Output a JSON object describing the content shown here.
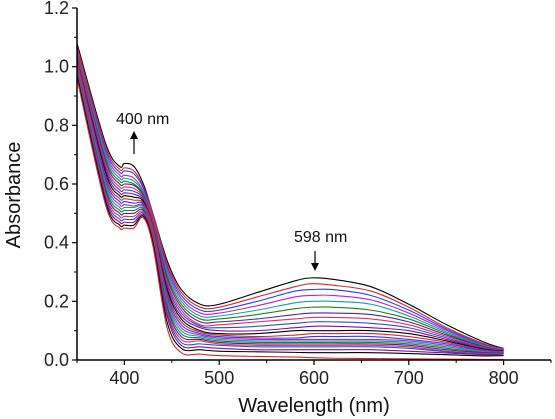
{
  "chart_data": {
    "type": "line",
    "title": "",
    "xlabel": "Wavelength (nm)",
    "ylabel": "Absorbance",
    "xlim": [
      350,
      850
    ],
    "ylim": [
      0.0,
      1.2
    ],
    "x_ticks": [
      400,
      500,
      600,
      700,
      800
    ],
    "y_ticks": [
      0.0,
      0.2,
      0.4,
      0.6,
      0.8,
      1.0,
      1.2
    ],
    "x_tick_labels": [
      "400",
      "500",
      "600",
      "700",
      "800"
    ],
    "y_tick_labels": [
      "0.0",
      "0.2",
      "0.4",
      "0.6",
      "0.8",
      "1.0",
      "1.2"
    ],
    "grid": false,
    "legend": "none",
    "annotations": [
      {
        "text": "400 nm",
        "x": 400,
        "y": 0.7,
        "arrow": "up"
      },
      {
        "text": "598 nm",
        "x": 598,
        "y": 0.3,
        "arrow": "down"
      }
    ],
    "series_colors": [
      "#000000",
      "#d62728",
      "#1f3fff",
      "#c020c0",
      "#10a0a0",
      "#208020",
      "#5020a0",
      "#e03060",
      "#3050c0",
      "#8010a0"
    ],
    "series": [
      {
        "x": [
          350,
          380,
          395,
          400,
          410,
          420,
          430,
          445,
          460,
          480,
          500,
          540,
          580,
          598,
          620,
          660,
          700,
          740,
          780,
          800
        ],
        "values": [
          1.08,
          0.74,
          0.66,
          0.67,
          0.66,
          0.6,
          0.5,
          0.34,
          0.24,
          0.19,
          0.19,
          0.23,
          0.27,
          0.28,
          0.275,
          0.25,
          0.19,
          0.12,
          0.06,
          0.04
        ]
      },
      {
        "x": [
          350,
          380,
          395,
          400,
          410,
          420,
          430,
          445,
          460,
          480,
          500,
          540,
          580,
          598,
          620,
          660,
          700,
          740,
          780,
          800
        ],
        "values": [
          1.07,
          0.73,
          0.65,
          0.655,
          0.645,
          0.59,
          0.5,
          0.33,
          0.23,
          0.18,
          0.18,
          0.215,
          0.25,
          0.26,
          0.255,
          0.235,
          0.18,
          0.11,
          0.055,
          0.04
        ]
      },
      {
        "x": [
          350,
          380,
          395,
          400,
          410,
          420,
          430,
          445,
          460,
          480,
          500,
          540,
          580,
          598,
          620,
          660,
          700,
          740,
          780,
          800
        ],
        "values": [
          1.06,
          0.72,
          0.64,
          0.645,
          0.635,
          0.585,
          0.49,
          0.32,
          0.22,
          0.17,
          0.17,
          0.2,
          0.235,
          0.24,
          0.24,
          0.22,
          0.17,
          0.105,
          0.052,
          0.038
        ]
      },
      {
        "x": [
          350,
          380,
          395,
          400,
          410,
          420,
          430,
          445,
          460,
          480,
          500,
          540,
          580,
          598,
          620,
          660,
          700,
          740,
          780,
          800
        ],
        "values": [
          1.06,
          0.71,
          0.63,
          0.63,
          0.62,
          0.575,
          0.49,
          0.31,
          0.21,
          0.16,
          0.16,
          0.185,
          0.215,
          0.22,
          0.22,
          0.205,
          0.16,
          0.1,
          0.05,
          0.037
        ]
      },
      {
        "x": [
          350,
          380,
          395,
          400,
          410,
          420,
          430,
          445,
          460,
          480,
          500,
          540,
          580,
          598,
          620,
          660,
          700,
          740,
          780,
          800
        ],
        "values": [
          1.05,
          0.7,
          0.62,
          0.62,
          0.61,
          0.57,
          0.48,
          0.3,
          0.2,
          0.15,
          0.15,
          0.17,
          0.195,
          0.2,
          0.2,
          0.19,
          0.15,
          0.095,
          0.048,
          0.036
        ]
      },
      {
        "x": [
          350,
          380,
          395,
          400,
          410,
          420,
          430,
          445,
          460,
          480,
          500,
          540,
          580,
          598,
          620,
          660,
          700,
          740,
          780,
          800
        ],
        "values": [
          1.05,
          0.69,
          0.61,
          0.61,
          0.6,
          0.565,
          0.48,
          0.29,
          0.19,
          0.14,
          0.14,
          0.155,
          0.175,
          0.18,
          0.18,
          0.17,
          0.14,
          0.09,
          0.046,
          0.035
        ]
      },
      {
        "x": [
          350,
          380,
          395,
          400,
          410,
          420,
          430,
          445,
          460,
          480,
          500,
          540,
          580,
          598,
          620,
          660,
          700,
          740,
          780,
          800
        ],
        "values": [
          1.04,
          0.68,
          0.6,
          0.6,
          0.595,
          0.56,
          0.47,
          0.28,
          0.18,
          0.13,
          0.13,
          0.14,
          0.155,
          0.16,
          0.16,
          0.155,
          0.13,
          0.085,
          0.044,
          0.034
        ]
      },
      {
        "x": [
          350,
          380,
          395,
          400,
          410,
          420,
          430,
          445,
          460,
          480,
          500,
          540,
          580,
          598,
          620,
          660,
          700,
          740,
          780,
          800
        ],
        "values": [
          1.04,
          0.67,
          0.59,
          0.59,
          0.585,
          0.555,
          0.47,
          0.27,
          0.17,
          0.12,
          0.12,
          0.13,
          0.14,
          0.145,
          0.145,
          0.14,
          0.12,
          0.08,
          0.042,
          0.033
        ]
      },
      {
        "x": [
          350,
          380,
          395,
          400,
          410,
          420,
          430,
          445,
          460,
          480,
          500,
          540,
          580,
          598,
          620,
          660,
          700,
          740,
          780,
          800
        ],
        "values": [
          1.03,
          0.66,
          0.58,
          0.58,
          0.575,
          0.55,
          0.46,
          0.26,
          0.16,
          0.115,
          0.11,
          0.115,
          0.125,
          0.13,
          0.13,
          0.125,
          0.11,
          0.075,
          0.04,
          0.032
        ]
      },
      {
        "x": [
          350,
          380,
          395,
          400,
          410,
          420,
          430,
          445,
          460,
          480,
          500,
          540,
          580,
          598,
          620,
          660,
          700,
          740,
          780,
          800
        ],
        "values": [
          1.03,
          0.65,
          0.57,
          0.57,
          0.565,
          0.545,
          0.46,
          0.25,
          0.15,
          0.11,
          0.1,
          0.1,
          0.11,
          0.115,
          0.115,
          0.11,
          0.1,
          0.07,
          0.038,
          0.031
        ]
      },
      {
        "x": [
          350,
          380,
          395,
          400,
          410,
          420,
          430,
          445,
          460,
          480,
          500,
          540,
          580,
          598,
          620,
          660,
          700,
          740,
          780,
          800
        ],
        "values": [
          1.02,
          0.64,
          0.56,
          0.56,
          0.555,
          0.54,
          0.45,
          0.24,
          0.14,
          0.1,
          0.09,
          0.09,
          0.1,
          0.1,
          0.1,
          0.1,
          0.09,
          0.065,
          0.036,
          0.03
        ]
      },
      {
        "x": [
          350,
          380,
          395,
          400,
          410,
          420,
          430,
          445,
          460,
          480,
          500,
          540,
          580,
          598,
          620,
          660,
          700,
          740,
          780,
          800
        ],
        "values": [
          1.02,
          0.63,
          0.55,
          0.55,
          0.545,
          0.535,
          0.45,
          0.23,
          0.13,
          0.095,
          0.085,
          0.08,
          0.085,
          0.09,
          0.09,
          0.09,
          0.08,
          0.06,
          0.034,
          0.029
        ]
      },
      {
        "x": [
          350,
          380,
          395,
          400,
          410,
          420,
          430,
          445,
          460,
          480,
          500,
          540,
          580,
          598,
          620,
          660,
          700,
          740,
          780,
          800
        ],
        "values": [
          1.01,
          0.62,
          0.54,
          0.54,
          0.535,
          0.53,
          0.44,
          0.22,
          0.12,
          0.09,
          0.08,
          0.075,
          0.075,
          0.08,
          0.08,
          0.08,
          0.07,
          0.055,
          0.032,
          0.028
        ]
      },
      {
        "x": [
          350,
          380,
          395,
          400,
          410,
          420,
          430,
          445,
          460,
          480,
          500,
          540,
          580,
          598,
          620,
          660,
          700,
          740,
          780,
          800
        ],
        "values": [
          1.01,
          0.61,
          0.53,
          0.53,
          0.525,
          0.525,
          0.44,
          0.21,
          0.11,
          0.085,
          0.075,
          0.07,
          0.07,
          0.07,
          0.07,
          0.07,
          0.065,
          0.05,
          0.03,
          0.027
        ]
      },
      {
        "x": [
          350,
          380,
          395,
          400,
          410,
          420,
          430,
          445,
          460,
          480,
          500,
          540,
          580,
          598,
          620,
          660,
          700,
          740,
          780,
          800
        ],
        "values": [
          1.0,
          0.6,
          0.52,
          0.52,
          0.52,
          0.52,
          0.43,
          0.2,
          0.1,
          0.08,
          0.07,
          0.065,
          0.065,
          0.065,
          0.065,
          0.065,
          0.06,
          0.045,
          0.028,
          0.026
        ]
      },
      {
        "x": [
          350,
          380,
          395,
          400,
          410,
          420,
          430,
          445,
          460,
          480,
          500,
          540,
          580,
          598,
          620,
          660,
          700,
          740,
          780,
          800
        ],
        "values": [
          1.0,
          0.59,
          0.51,
          0.51,
          0.51,
          0.515,
          0.43,
          0.19,
          0.09,
          0.075,
          0.065,
          0.06,
          0.06,
          0.06,
          0.06,
          0.06,
          0.055,
          0.04,
          0.026,
          0.025
        ]
      },
      {
        "x": [
          350,
          380,
          395,
          400,
          410,
          420,
          430,
          445,
          460,
          480,
          500,
          540,
          580,
          598,
          620,
          660,
          700,
          740,
          780,
          800
        ],
        "values": [
          0.99,
          0.58,
          0.5,
          0.5,
          0.5,
          0.51,
          0.42,
          0.18,
          0.08,
          0.07,
          0.06,
          0.055,
          0.055,
          0.055,
          0.055,
          0.055,
          0.05,
          0.035,
          0.024,
          0.024
        ]
      },
      {
        "x": [
          350,
          380,
          395,
          400,
          410,
          420,
          430,
          445,
          460,
          480,
          500,
          540,
          580,
          598,
          620,
          660,
          700,
          740,
          780,
          800
        ],
        "values": [
          0.99,
          0.57,
          0.49,
          0.49,
          0.49,
          0.505,
          0.42,
          0.17,
          0.07,
          0.065,
          0.055,
          0.05,
          0.05,
          0.05,
          0.05,
          0.05,
          0.045,
          0.03,
          0.022,
          0.023
        ]
      },
      {
        "x": [
          350,
          380,
          395,
          400,
          410,
          420,
          430,
          445,
          460,
          480,
          500,
          540,
          580,
          598,
          620,
          660,
          700,
          740,
          780,
          800
        ],
        "values": [
          0.98,
          0.56,
          0.48,
          0.48,
          0.48,
          0.5,
          0.41,
          0.16,
          0.06,
          0.055,
          0.05,
          0.045,
          0.045,
          0.045,
          0.045,
          0.045,
          0.04,
          0.028,
          0.02,
          0.022
        ]
      },
      {
        "x": [
          350,
          380,
          395,
          400,
          410,
          420,
          430,
          445,
          460,
          480,
          500,
          540,
          580,
          598,
          620,
          660,
          700,
          740,
          780,
          800
        ],
        "values": [
          0.97,
          0.55,
          0.47,
          0.47,
          0.47,
          0.495,
          0.41,
          0.15,
          0.05,
          0.045,
          0.04,
          0.035,
          0.035,
          0.035,
          0.035,
          0.035,
          0.03,
          0.024,
          0.018,
          0.02
        ]
      },
      {
        "x": [
          350,
          380,
          395,
          400,
          410,
          420,
          430,
          445,
          460,
          480,
          500,
          540,
          580,
          598,
          620,
          660,
          700,
          740,
          780,
          800
        ],
        "values": [
          0.97,
          0.54,
          0.46,
          0.46,
          0.46,
          0.49,
          0.4,
          0.13,
          0.04,
          0.035,
          0.03,
          0.028,
          0.026,
          0.025,
          0.025,
          0.025,
          0.022,
          0.018,
          0.014,
          0.015
        ]
      },
      {
        "x": [
          350,
          380,
          395,
          400,
          410,
          420,
          430,
          445,
          460,
          480,
          500,
          540,
          580,
          598,
          620,
          660,
          700,
          740,
          780,
          800
        ],
        "values": [
          0.96,
          0.53,
          0.45,
          0.45,
          0.45,
          0.485,
          0.39,
          0.11,
          0.025,
          0.02,
          0.015,
          0.012,
          0.01,
          0.008,
          0.006,
          0.005,
          0.004,
          0.003,
          0.002,
          0.002
        ]
      }
    ]
  }
}
